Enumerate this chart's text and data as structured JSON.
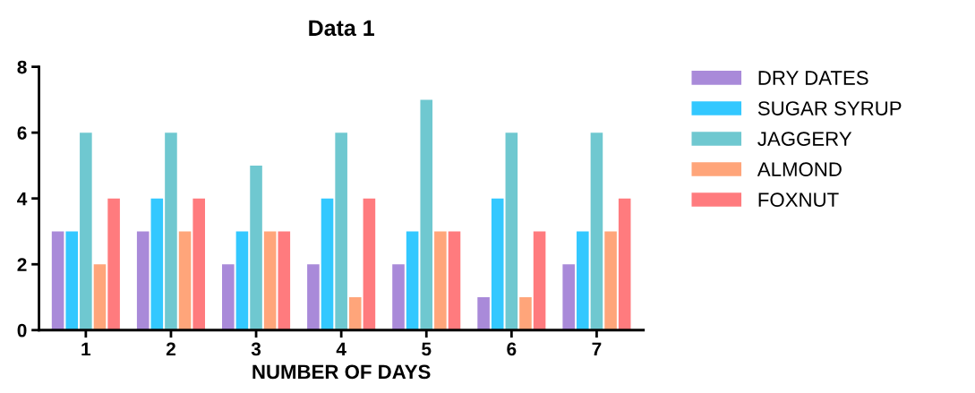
{
  "chart_data": {
    "type": "bar",
    "title": "Data 1",
    "xlabel": "NUMBER OF DAYS",
    "categories": [
      "1",
      "2",
      "3",
      "4",
      "5",
      "6",
      "7"
    ],
    "series": [
      {
        "name": "DRY DATES",
        "color": "#a98ad9",
        "values": [
          3,
          3,
          2,
          2,
          2,
          1,
          2
        ]
      },
      {
        "name": "SUGAR SYRUP",
        "color": "#33c8ff",
        "values": [
          3,
          4,
          3,
          4,
          3,
          4,
          3
        ]
      },
      {
        "name": "JAGGERY",
        "color": "#6fc8d0",
        "values": [
          6,
          6,
          5,
          6,
          7,
          6,
          6
        ]
      },
      {
        "name": "ALMOND",
        "color": "#ffa57a",
        "values": [
          2,
          3,
          3,
          1,
          3,
          1,
          3
        ]
      },
      {
        "name": "FOXNUT",
        "color": "#ff7b7e",
        "values": [
          4,
          4,
          3,
          4,
          3,
          3,
          4
        ]
      }
    ],
    "ylim": [
      0,
      8
    ],
    "yticks": [
      0,
      2,
      4,
      6,
      8
    ],
    "grid": false,
    "legend": "right"
  }
}
